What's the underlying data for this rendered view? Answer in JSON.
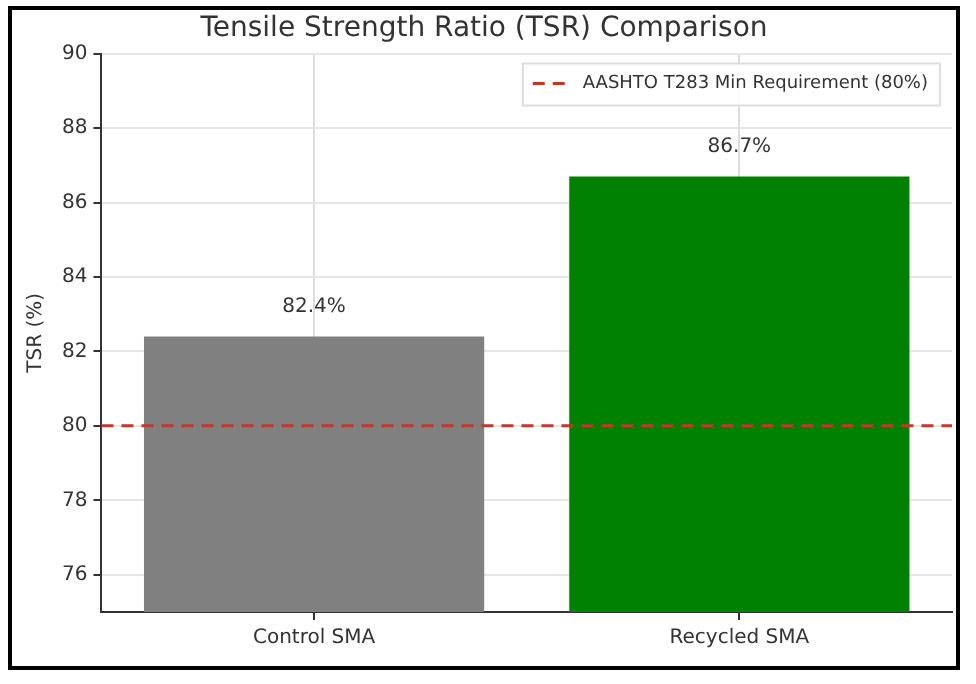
{
  "chart_data": {
    "type": "bar",
    "title": "Tensile Strength Ratio (TSR) Comparison",
    "ylabel": "TSR (%)",
    "categories": [
      "Control SMA",
      "Recycled SMA"
    ],
    "values": [
      82.4,
      86.7
    ],
    "colors": [
      "#808080",
      "#008000"
    ],
    "value_labels": [
      "82.4%",
      "86.7%"
    ],
    "ylim": [
      75,
      90
    ],
    "yticks": [
      76,
      78,
      80,
      82,
      84,
      86,
      88,
      90
    ],
    "ref_lines": [
      {
        "axis": "y",
        "value": 80,
        "label": "AASHTO T283 Min Requirement (80%)",
        "color": "#c0392b",
        "line_style": "dashed"
      }
    ],
    "grid": true,
    "legend": "top right"
  }
}
